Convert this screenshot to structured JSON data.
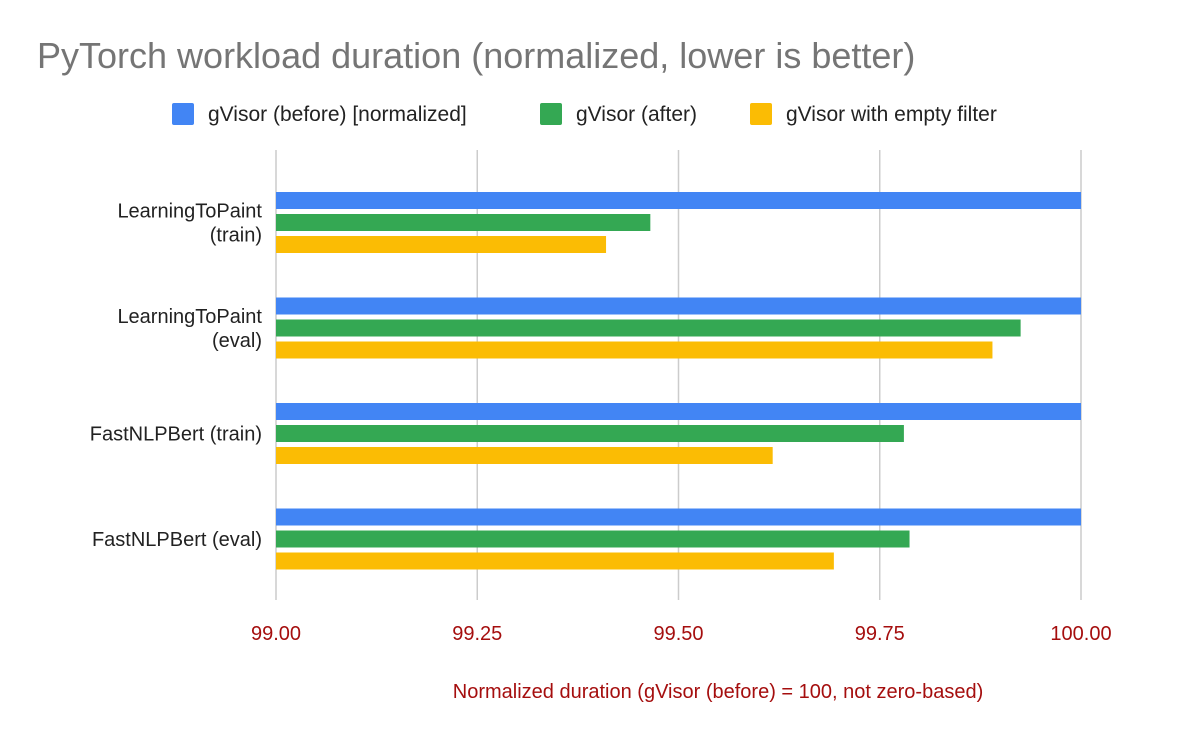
{
  "chart_data": {
    "type": "bar",
    "orientation": "horizontal",
    "title": "PyTorch workload duration (normalized, lower is better)",
    "xlabel": "Normalized duration (gVisor (before) = 100, not zero-based)",
    "ylabel": "",
    "categories": [
      [
        "LearningToPaint",
        "(train)"
      ],
      [
        "LearningToPaint",
        "(eval)"
      ],
      [
        "FastNLPBert (train)"
      ],
      [
        "FastNLPBert (eval)"
      ]
    ],
    "series": [
      {
        "name": "gVisor (before) [normalized]",
        "color": "#4285f4",
        "values": [
          100.0,
          100.0,
          100.0,
          100.0
        ]
      },
      {
        "name": "gVisor (after)",
        "color": "#34a853",
        "values": [
          99.465,
          99.925,
          99.78,
          99.787
        ]
      },
      {
        "name": "gVisor with empty filter",
        "color": "#fbbc04",
        "values": [
          99.41,
          99.89,
          99.617,
          99.693
        ]
      }
    ],
    "xlim": [
      99.0,
      100.0
    ],
    "xticks": [
      "99.00",
      "99.25",
      "99.50",
      "99.75",
      "100.00"
    ],
    "xtick_values": [
      99.0,
      99.25,
      99.5,
      99.75,
      100.0
    ],
    "grid": true,
    "legend_position": "top",
    "colors": {
      "title": "#757575",
      "axis_text": "#a50e0e",
      "category_text": "#222222",
      "legend_text": "#222222",
      "grid": "#cccccc"
    }
  }
}
